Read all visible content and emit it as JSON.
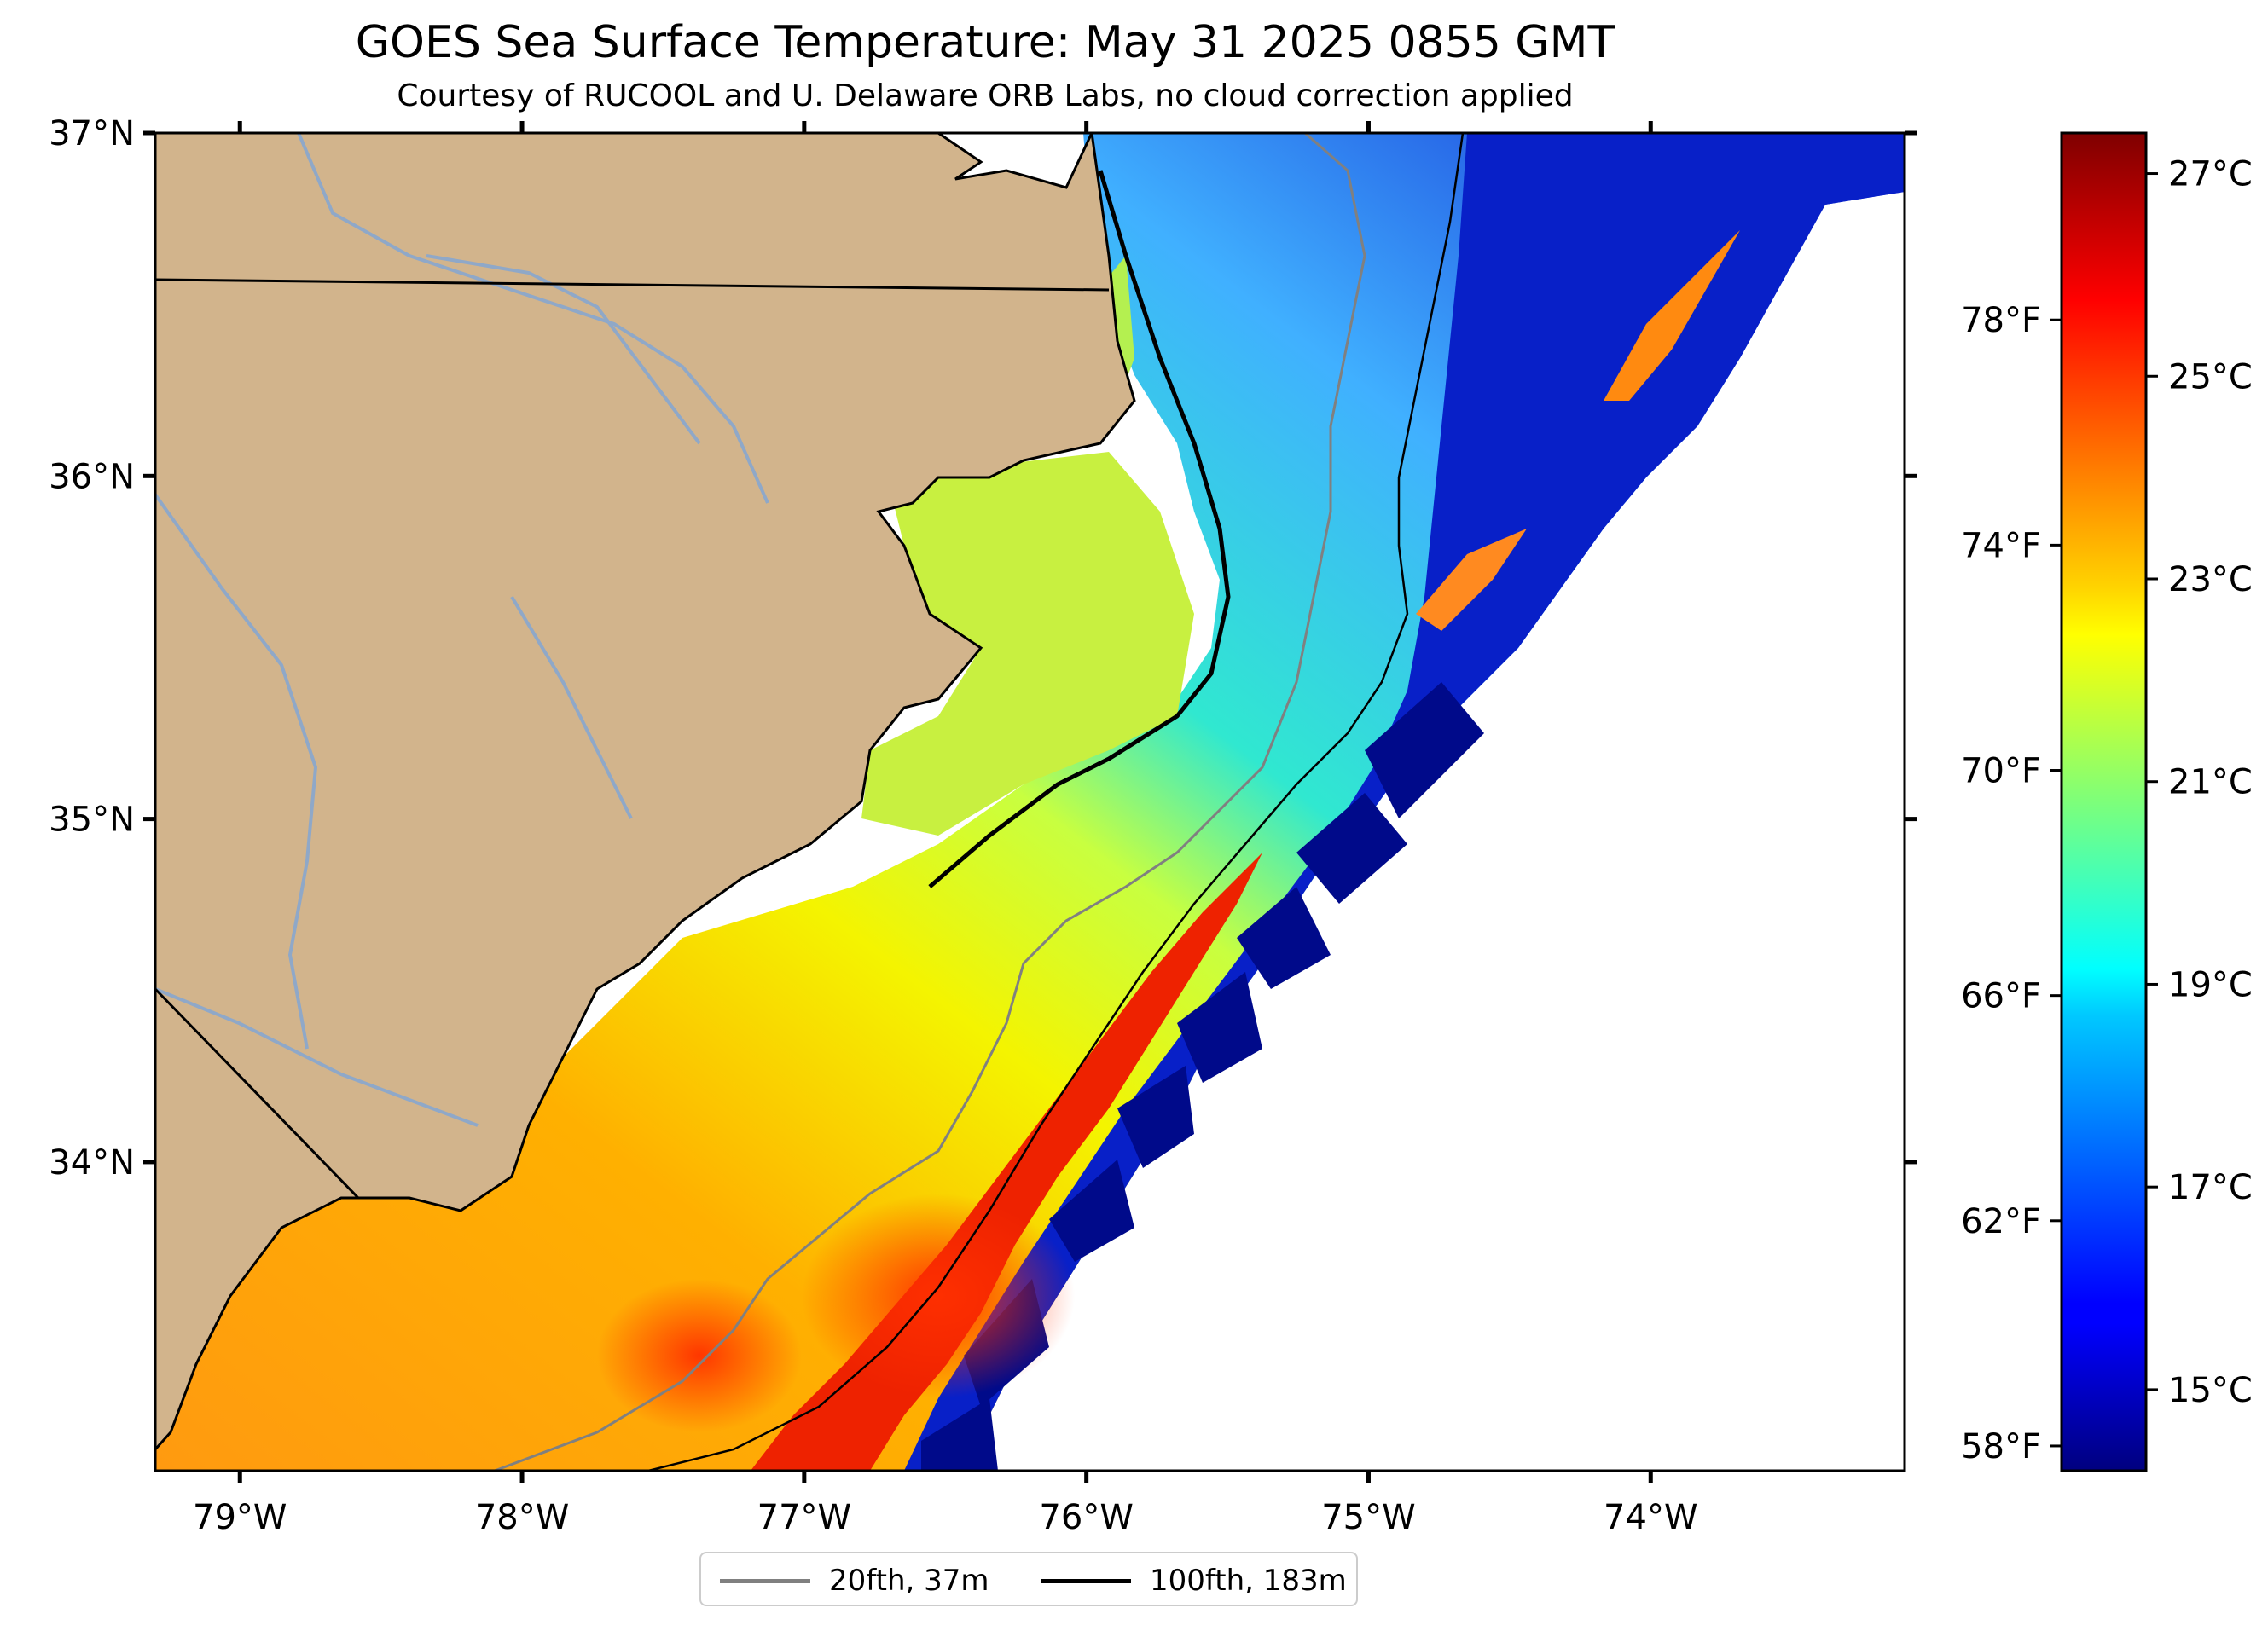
{
  "title": "GOES Sea Surface Temperature: May 31 2025 0855 GMT",
  "subtitle": "Courtesy of RUCOOL and U. Delaware ORB Labs, no cloud correction applied",
  "map": {
    "lat_range": [
      33.1,
      37.0
    ],
    "lon_range": [
      -79.3,
      -73.1
    ],
    "lat_labels": [
      "37°N",
      "36°N",
      "35°N",
      "34°N"
    ],
    "lat_values": [
      37,
      36,
      35,
      34
    ],
    "lon_labels": [
      "79°W",
      "78°W",
      "77°W",
      "76°W",
      "75°W",
      "74°W"
    ],
    "lon_values": [
      -79,
      -78,
      -77,
      -76,
      -75,
      -74
    ],
    "land_color": "#d2b48c",
    "river_color": "#8fa8c8"
  },
  "colorbar": {
    "colormap": "jet",
    "range_c": [
      14.2,
      27.4
    ],
    "celsius_labels": [
      "27°C",
      "25°C",
      "23°C",
      "21°C",
      "19°C",
      "17°C",
      "15°C"
    ],
    "celsius_values": [
      27,
      25,
      23,
      21,
      19,
      17,
      15
    ],
    "fahrenheit_labels": [
      "78°F",
      "74°F",
      "70°F",
      "66°F",
      "62°F",
      "58°F"
    ],
    "fahrenheit_values": [
      78,
      74,
      70,
      66,
      62,
      58
    ]
  },
  "legend": {
    "items": [
      {
        "label": "20fth, 37m",
        "color": "#808080"
      },
      {
        "label": "100fth, 183m",
        "color": "#000000"
      }
    ]
  }
}
